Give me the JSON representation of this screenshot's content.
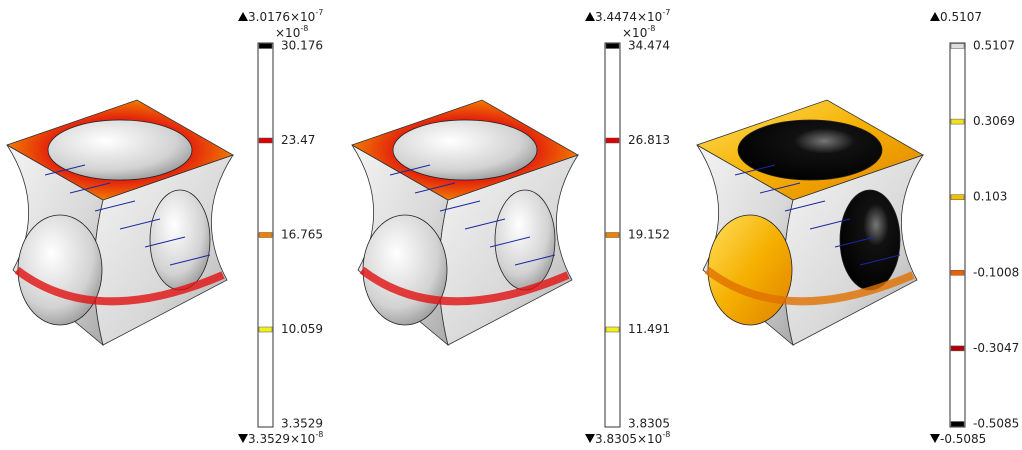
{
  "panels": [
    {
      "max": {
        "base": "3.0176×10",
        "exponent": "-7"
      },
      "multiplier": {
        "base": "×10",
        "exponent": "-8"
      },
      "ticks": [
        "30.176",
        "23.47",
        "16.765",
        "10.059",
        "3.3529"
      ],
      "min": {
        "base": "3.3529×10",
        "exponent": "-8"
      }
    },
    {
      "max": {
        "base": "3.4474×10",
        "exponent": "-7"
      },
      "multiplier": {
        "base": "×10",
        "exponent": "-8"
      },
      "ticks": [
        "34.474",
        "26.813",
        "19.152",
        "11.491",
        "3.8305"
      ],
      "min": {
        "base": "3.8305×10",
        "exponent": "-8"
      }
    },
    {
      "max": {
        "base": "0.5107"
      },
      "ticks": [
        "0.5107",
        "0.3069",
        "0.103",
        "-0.1008",
        "-0.3047",
        "-0.5085"
      ],
      "min": {
        "base": "-0.5085"
      }
    }
  ]
}
